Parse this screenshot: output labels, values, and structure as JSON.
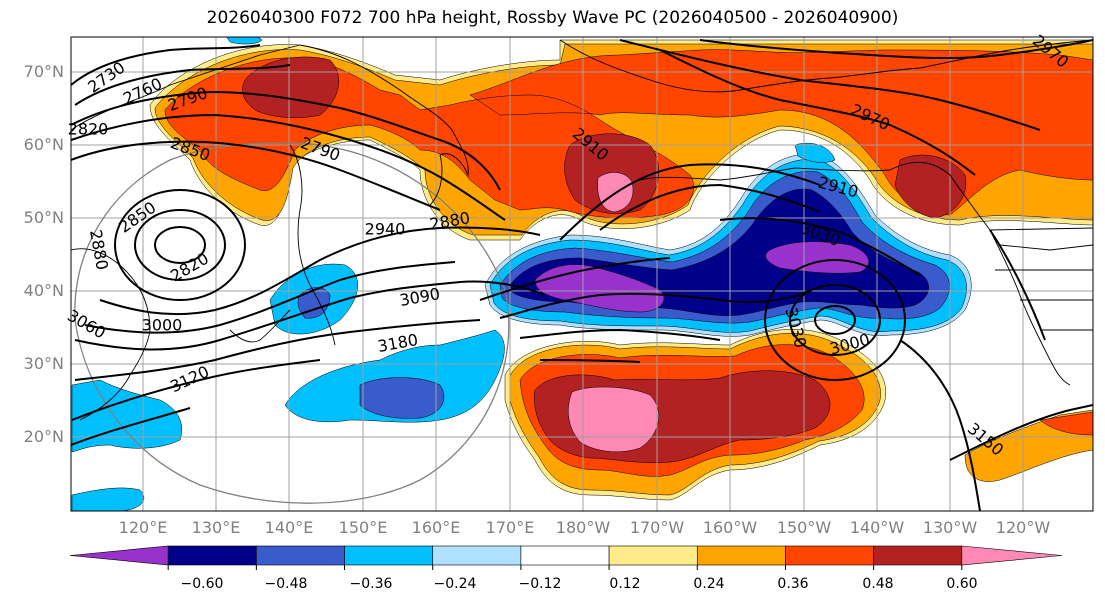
{
  "title": "2026040300 F072 700 hPa height, Rossby Wave PC (2026040500 - 2026040900)",
  "lat_labels": [
    "70°N",
    "60°N",
    "50°N",
    "40°N",
    "30°N",
    "20°N"
  ],
  "lon_labels": [
    "120°E",
    "130°E",
    "140°E",
    "150°E",
    "160°E",
    "170°E",
    "180°W",
    "170°W",
    "160°W",
    "150°W",
    "140°W",
    "130°W",
    "120°W"
  ],
  "contour_labels": [
    "2730",
    "2760",
    "2790",
    "2820",
    "2850",
    "2790",
    "2850",
    "2820",
    "2880",
    "2940",
    "2880",
    "2910",
    "2970",
    "2970",
    "2910",
    "3030",
    "3090",
    "3180",
    "3000",
    "3060",
    "3120",
    "3030",
    "3000",
    "3150"
  ],
  "colorbar": {
    "colors": [
      "#9932CC",
      "#00008B",
      "#3A5BCC",
      "#00BFFF",
      "#B0E0FF",
      "#FFFFFF",
      "#FFEB8A",
      "#FFA500",
      "#FF4500",
      "#B22222",
      "#FF88B4"
    ],
    "ticks": [
      "−0.60",
      "−0.48",
      "−0.36",
      "−0.24",
      "−0.12",
      "0.12",
      "0.24",
      "0.36",
      "0.48",
      "0.60"
    ]
  },
  "field_colors": {
    "purple": "#9932CC",
    "navy": "#00008B",
    "blue": "#3A5BCC",
    "cyan": "#00BFFF",
    "lightcyan": "#B0E0FF",
    "yellow": "#FFEB8A",
    "orange": "#FFA500",
    "redorange": "#FF4500",
    "darkred": "#B22222",
    "pink": "#FF88B4"
  }
}
